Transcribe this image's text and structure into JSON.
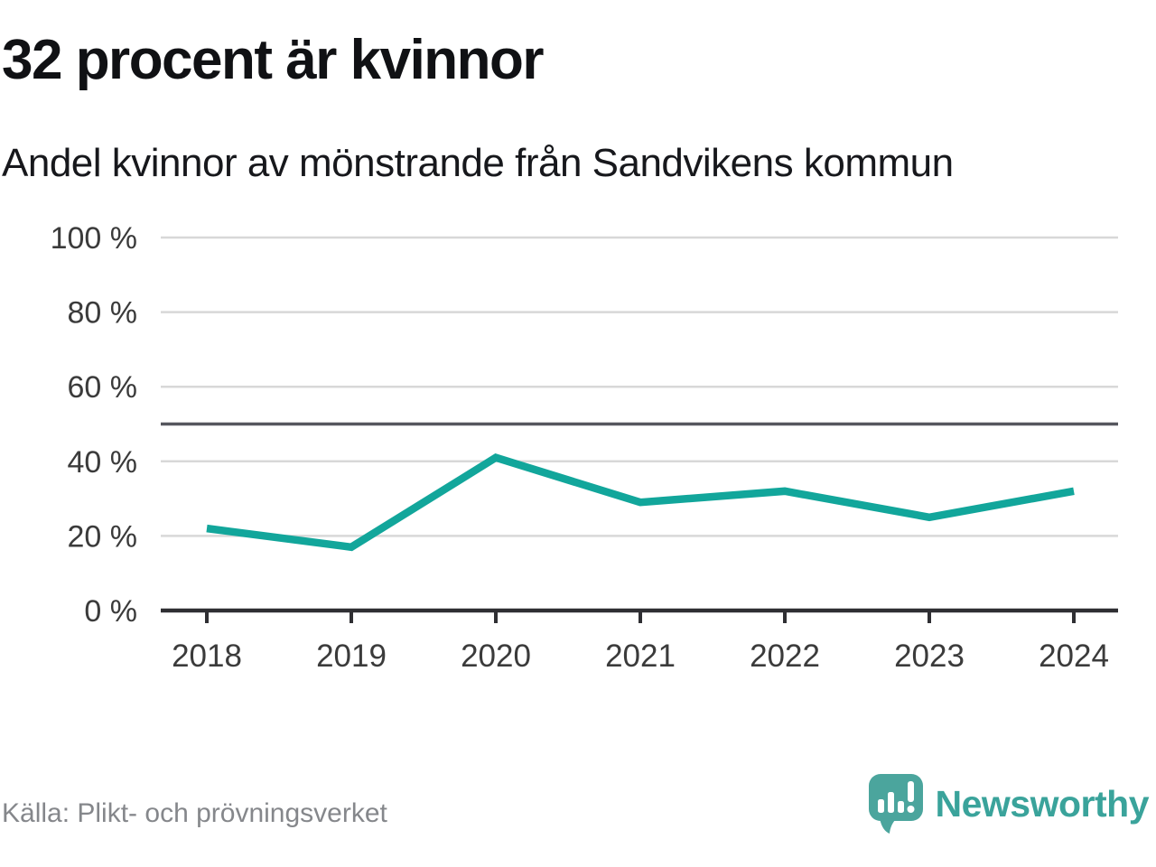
{
  "chart_data": {
    "type": "line",
    "title": "32 procent är kvinnor",
    "subtitle": "Andel kvinnor av mönstrande från Sandvikens kommun",
    "categories": [
      "2018",
      "2019",
      "2020",
      "2021",
      "2022",
      "2023",
      "2024"
    ],
    "values": [
      22,
      17,
      41,
      29,
      32,
      25,
      32
    ],
    "ylim": [
      0,
      100
    ],
    "yticks": [
      {
        "value": 0,
        "label": "0 %"
      },
      {
        "value": 20,
        "label": "20 %"
      },
      {
        "value": 40,
        "label": "40 %"
      },
      {
        "value": 60,
        "label": "60 %"
      },
      {
        "value": 80,
        "label": "80 %"
      },
      {
        "value": 100,
        "label": "100 %"
      }
    ],
    "reference_line": 50,
    "grid": true,
    "legend": "none",
    "xlabel": "",
    "ylabel": "",
    "colors": {
      "line": "#12A69B",
      "grid": "#D8D8D8",
      "reference": "#55565E",
      "axis": "#2F2F33"
    }
  },
  "footer": {
    "source": "Källa: Plikt- och prövningsverket",
    "brand": {
      "name": "Newsworthy",
      "color": "#3AA39B",
      "icon_color": "#4BA59D",
      "icon": "speech-bubble-bar-chart-icon"
    }
  }
}
